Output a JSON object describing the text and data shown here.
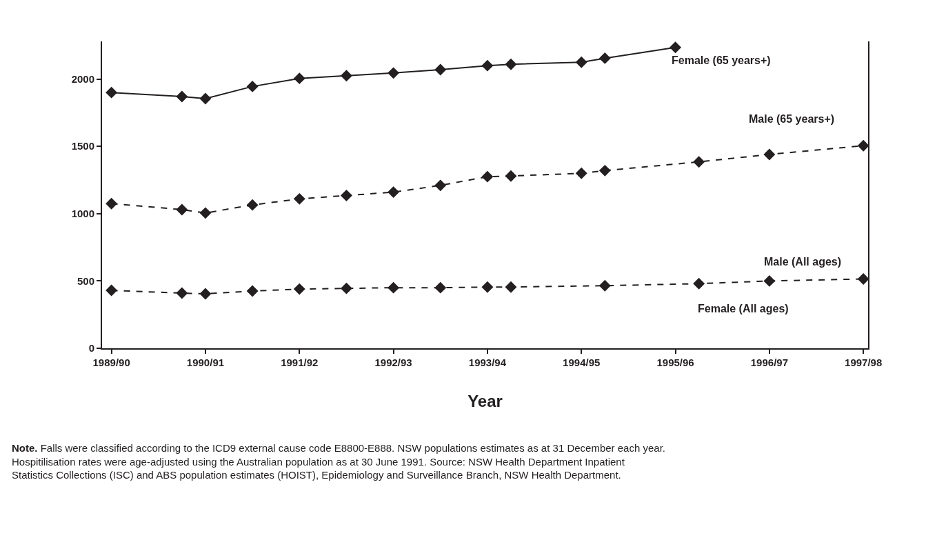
{
  "chart_data": {
    "type": "line",
    "xlabel": "Year",
    "ylim": [
      0,
      2280
    ],
    "categories": [
      "1989/90",
      null,
      null,
      null,
      "1990/91",
      null,
      null,
      null,
      "1991/92",
      null,
      null,
      null,
      "1992/93",
      null,
      null,
      null,
      "1993/94",
      null,
      null,
      null,
      "1994/95",
      null,
      null,
      null,
      "1995/96",
      null,
      null,
      null,
      "1996/97",
      null,
      null,
      null,
      "1997/98"
    ],
    "yticks": [
      0,
      500,
      1000,
      1500,
      2000
    ],
    "legend": false,
    "marker": "diamond",
    "series": [
      {
        "name": "Female (65 years+)",
        "color": "#231f20",
        "line_style": "solid",
        "values": [
          1900,
          null,
          null,
          1870,
          1855,
          null,
          1945,
          null,
          2005,
          null,
          2025,
          null,
          2045,
          null,
          2070,
          null,
          2100,
          2110,
          null,
          null,
          2125,
          2155,
          null,
          null,
          2235,
          null,
          null,
          null,
          null,
          null,
          null,
          null,
          null
        ]
      },
      {
        "name": "Male (65 years+)",
        "color": "#231f20",
        "line_style": "dashed",
        "values": [
          1075,
          null,
          null,
          1030,
          1005,
          null,
          1065,
          null,
          1110,
          null,
          1135,
          null,
          1160,
          null,
          1210,
          null,
          1275,
          1280,
          null,
          null,
          1300,
          1320,
          null,
          null,
          null,
          1385,
          null,
          null,
          1440,
          null,
          null,
          null,
          1505
        ]
      },
      {
        "name": "Male (All ages)",
        "color": "#231f20",
        "line_style": "dashed",
        "values": [
          430,
          null,
          null,
          410,
          405,
          null,
          425,
          null,
          440,
          null,
          445,
          null,
          450,
          null,
          450,
          null,
          455,
          455,
          null,
          null,
          null,
          465,
          null,
          null,
          null,
          480,
          null,
          null,
          500,
          null,
          null,
          null,
          515
        ]
      }
    ],
    "annotations": [
      {
        "text": "Female (All ages)",
        "x": "1996/97",
        "y": 500
      },
      "Note. Falls were classified according to the ICD9 external cause code E8800-E888. NSW populations estimates as at 31 December each year. Hospitilisation rates were age-adjusted using the Australian population as at 30 June 1991. Source: NSW Health Department Inpatient Statistics Collections (ISC) and ABS population estimates (HOIST), Epidemiology and Surveillance Branch, NSW Health Department."
    ]
  }
}
